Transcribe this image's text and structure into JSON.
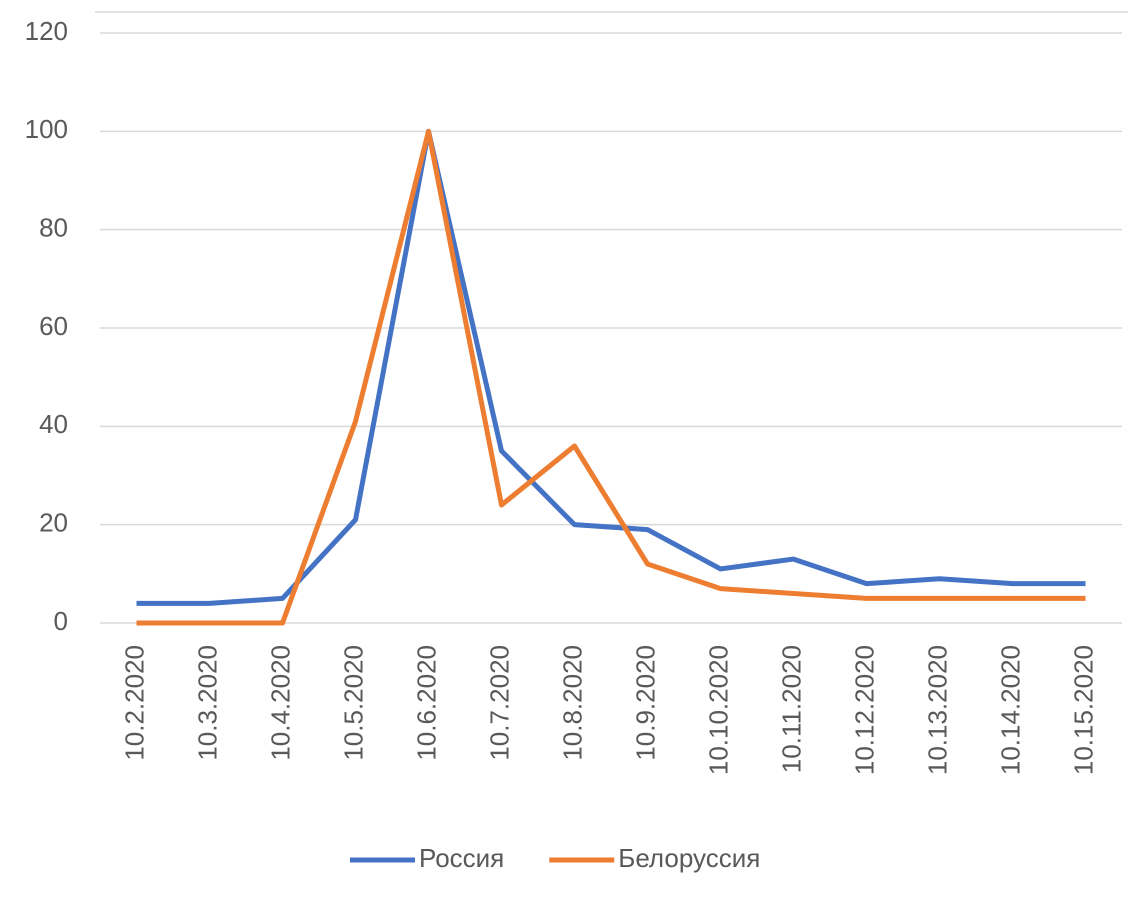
{
  "chart_data": {
    "type": "line",
    "categories": [
      "10.2.2020",
      "10.3.2020",
      "10.4.2020",
      "10.5.2020",
      "10.6.2020",
      "10.7.2020",
      "10.8.2020",
      "10.9.2020",
      "10.10.2020",
      "10.11.2020",
      "10.12.2020",
      "10.13.2020",
      "10.14.2020",
      "10.15.2020"
    ],
    "series": [
      {
        "name": "Россия",
        "color": "#4472c4",
        "values": [
          4,
          4,
          5,
          21,
          100,
          35,
          20,
          19,
          11,
          13,
          8,
          9,
          8,
          8
        ]
      },
      {
        "name": "Белоруссия",
        "color": "#ed7d31",
        "values": [
          0,
          0,
          0,
          41,
          100,
          24,
          36,
          12,
          7,
          6,
          5,
          5,
          5,
          5
        ]
      }
    ],
    "ylim": [
      0,
      120
    ],
    "yticks": [
      0,
      20,
      40,
      60,
      80,
      100,
      120
    ],
    "grid": true,
    "legend": "bottom"
  }
}
